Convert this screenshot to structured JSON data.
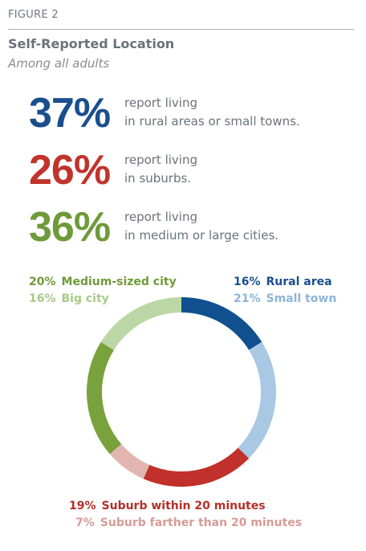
{
  "figure_label": "FIGURE 2",
  "title": "Self-Reported Location",
  "subtitle": "Among all adults",
  "stats": [
    {
      "value": "37%",
      "line1": "report living",
      "line2": "in rural areas or small towns.",
      "color": "#1a4f8e"
    },
    {
      "value": "26%",
      "line1": "report living",
      "line2": "in suburbs.",
      "color": "#c1332b"
    },
    {
      "value": "36%",
      "line1": "report living",
      "line2": "in medium or large cities.",
      "color": "#6f9a3a"
    }
  ],
  "chart_data": {
    "type": "pie",
    "style": "donut",
    "slices": [
      {
        "label": "Rural area",
        "value": 16,
        "pct_label": "16%",
        "color": "#10508f"
      },
      {
        "label": "Small town",
        "value": 21,
        "pct_label": "21%",
        "color": "#a9c8e4"
      },
      {
        "label": "Suburb within 20 minutes",
        "value": 19,
        "pct_label": "19%",
        "color": "#c1302a"
      },
      {
        "label": "Suburb farther than 20 minutes",
        "value": 7,
        "pct_label": "7%",
        "color": "#e2b5b1"
      },
      {
        "label": "Medium-sized city",
        "value": 20,
        "pct_label": "20%",
        "color": "#79a13c"
      },
      {
        "label": "Big city",
        "value": 16,
        "pct_label": "16%",
        "color": "#bcd7a6"
      }
    ],
    "legend_text_colors": {
      "Rural area": "#1a4f8e",
      "Small town": "#8fb4d7",
      "Suburb within 20 minutes": "#b33029",
      "Suburb farther than 20 minutes": "#d69c96",
      "Medium-sized city": "#6f9a3a",
      "Big city": "#a8c98a"
    }
  }
}
